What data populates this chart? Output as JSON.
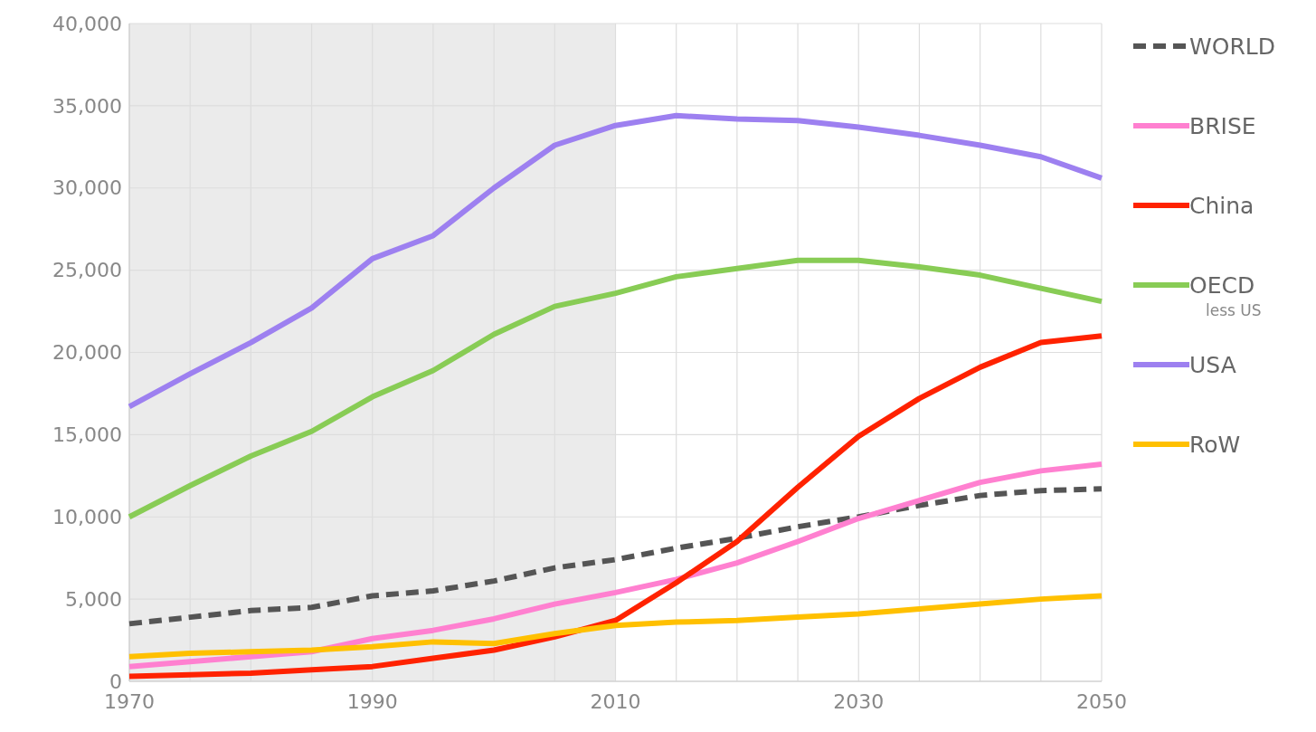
{
  "chart_data": {
    "type": "line",
    "x": [
      1970,
      1975,
      1980,
      1985,
      1990,
      1995,
      2000,
      2005,
      2010,
      2015,
      2020,
      2025,
      2030,
      2035,
      2040,
      2045,
      2050
    ],
    "series": [
      {
        "name": "WORLD",
        "color": "#555555",
        "line_style": "dashed",
        "values": [
          3500,
          3900,
          4300,
          4500,
          5200,
          5500,
          6100,
          6900,
          7400,
          8100,
          8700,
          9400,
          10000,
          10700,
          11300,
          11600,
          11700
        ]
      },
      {
        "name": "BRISE",
        "color": "#ff80d0",
        "values": [
          900,
          1200,
          1500,
          1800,
          2600,
          3100,
          3800,
          4700,
          5400,
          6200,
          7200,
          8500,
          9900,
          11000,
          12100,
          12800,
          13200
        ]
      },
      {
        "name": "China",
        "color": "#ff2200",
        "values": [
          300,
          400,
          500,
          700,
          900,
          1400,
          1900,
          2700,
          3700,
          6000,
          8500,
          11800,
          14900,
          17200,
          19100,
          20600,
          21000
        ]
      },
      {
        "name": "OECD less US",
        "color": "#88cc55",
        "values": [
          10000,
          11900,
          13700,
          15200,
          17300,
          18900,
          21100,
          22800,
          23600,
          24600,
          25100,
          25600,
          25600,
          25200,
          24700,
          23900,
          23100
        ]
      },
      {
        "name": "USA",
        "color": "#9d80f0",
        "values": [
          16700,
          18700,
          20600,
          22700,
          25700,
          27100,
          30000,
          32600,
          33800,
          34400,
          34200,
          34100,
          33700,
          33200,
          32600,
          31900,
          30600
        ]
      },
      {
        "name": "RoW",
        "color": "#ffc000",
        "values": [
          1500,
          1700,
          1800,
          1900,
          2100,
          2400,
          2300,
          2900,
          3400,
          3600,
          3700,
          3900,
          4100,
          4400,
          4700,
          5000,
          5200
        ]
      }
    ],
    "xlim": [
      1970,
      2050
    ],
    "xticks": [
      1970,
      {
        "value": 1975,
        "label": null
      },
      {
        "value": 1980,
        "label": null
      },
      {
        "value": 1985,
        "label": null
      },
      1990,
      {
        "value": 1995,
        "label": null
      },
      {
        "value": 2000,
        "label": null
      },
      {
        "value": 2005,
        "label": null
      },
      2010,
      {
        "value": 2015,
        "label": null
      },
      {
        "value": 2020,
        "label": null
      },
      {
        "value": 2025,
        "label": null
      },
      2030,
      {
        "value": 2035,
        "label": null
      },
      {
        "value": 2040,
        "label": null
      },
      {
        "value": 2045,
        "label": null
      },
      2050
    ],
    "ylim": [
      0,
      40000
    ],
    "yticks": [
      0,
      {
        "value": 5000,
        "label": "5,000"
      },
      {
        "value": 10000,
        "label": "10,000"
      },
      {
        "value": 15000,
        "label": "15,000"
      },
      {
        "value": 20000,
        "label": "20,000"
      },
      {
        "value": 25000,
        "label": "25,000"
      },
      {
        "value": 30000,
        "label": "30,000"
      },
      {
        "value": 35000,
        "label": "35,000"
      },
      {
        "value": 40000,
        "label": "40,000"
      }
    ],
    "grid": true,
    "bands": [
      {
        "axis": "x",
        "from": 1970,
        "to": 2010,
        "color": "#ebebeb"
      }
    ],
    "legend": "right"
  }
}
